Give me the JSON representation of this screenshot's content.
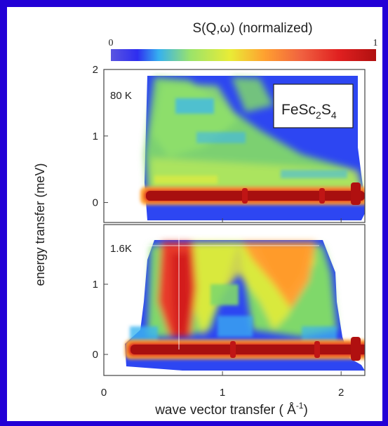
{
  "chart_data": {
    "type": "heatmap",
    "colorbar": {
      "title": "S(Q,ω) (normalized)",
      "min_label": "0",
      "max_label": "1",
      "stops": [
        "#5a55e0",
        "#2e2ef0",
        "#35b0f0",
        "#9be36a",
        "#e9ec36",
        "#ffa030",
        "#f06040",
        "#e02020",
        "#b01010"
      ]
    },
    "x": {
      "label_main": "wave vector transfer ( Å",
      "label_sup": "-1",
      "label_close": ")",
      "ticks": [
        "0",
        "1",
        "2"
      ],
      "range": [
        0,
        2.2
      ]
    },
    "y": {
      "label": "energy transfer (meV)",
      "range": [
        -0.3,
        2.0
      ]
    },
    "panels": [
      {
        "id": "top",
        "temperature": "80 K",
        "compound": {
          "base": "FeSc",
          "sub1": "2",
          "mid": "S",
          "sub2": "4"
        },
        "y_ticks": [
          "0",
          "1",
          "2"
        ],
        "y_range": [
          -0.3,
          2.0
        ],
        "elastic_line": {
          "energy": 0.0,
          "q_start": 0.18,
          "q_end": 2.0
        },
        "features": "diffuse quasielastic scattering, intensity decreasing with energy"
      },
      {
        "id": "bottom",
        "temperature": "1.6K",
        "y_ticks": [
          "0",
          "1"
        ],
        "y_range": [
          -0.3,
          1.85
        ],
        "elastic_line": {
          "energy": 0.0,
          "q_start": 0.18,
          "q_end": 2.05
        },
        "features": "dispersive excitations: high intensity near Q=0.5 and Q=1.5, soft near Q=1.0 and Q=2.0"
      }
    ]
  }
}
